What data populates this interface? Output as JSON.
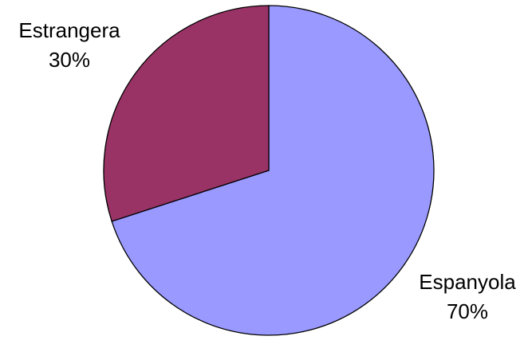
{
  "chart_data": {
    "type": "pie",
    "title": "",
    "slices": [
      {
        "label": "Espanyola",
        "value": 70,
        "display": "70%",
        "color": "#9999FF"
      },
      {
        "label": "Estrangera",
        "value": 30,
        "display": "30%",
        "color": "#993366"
      }
    ],
    "start_angle_deg": 0,
    "direction": "clockwise",
    "legend": "none"
  }
}
